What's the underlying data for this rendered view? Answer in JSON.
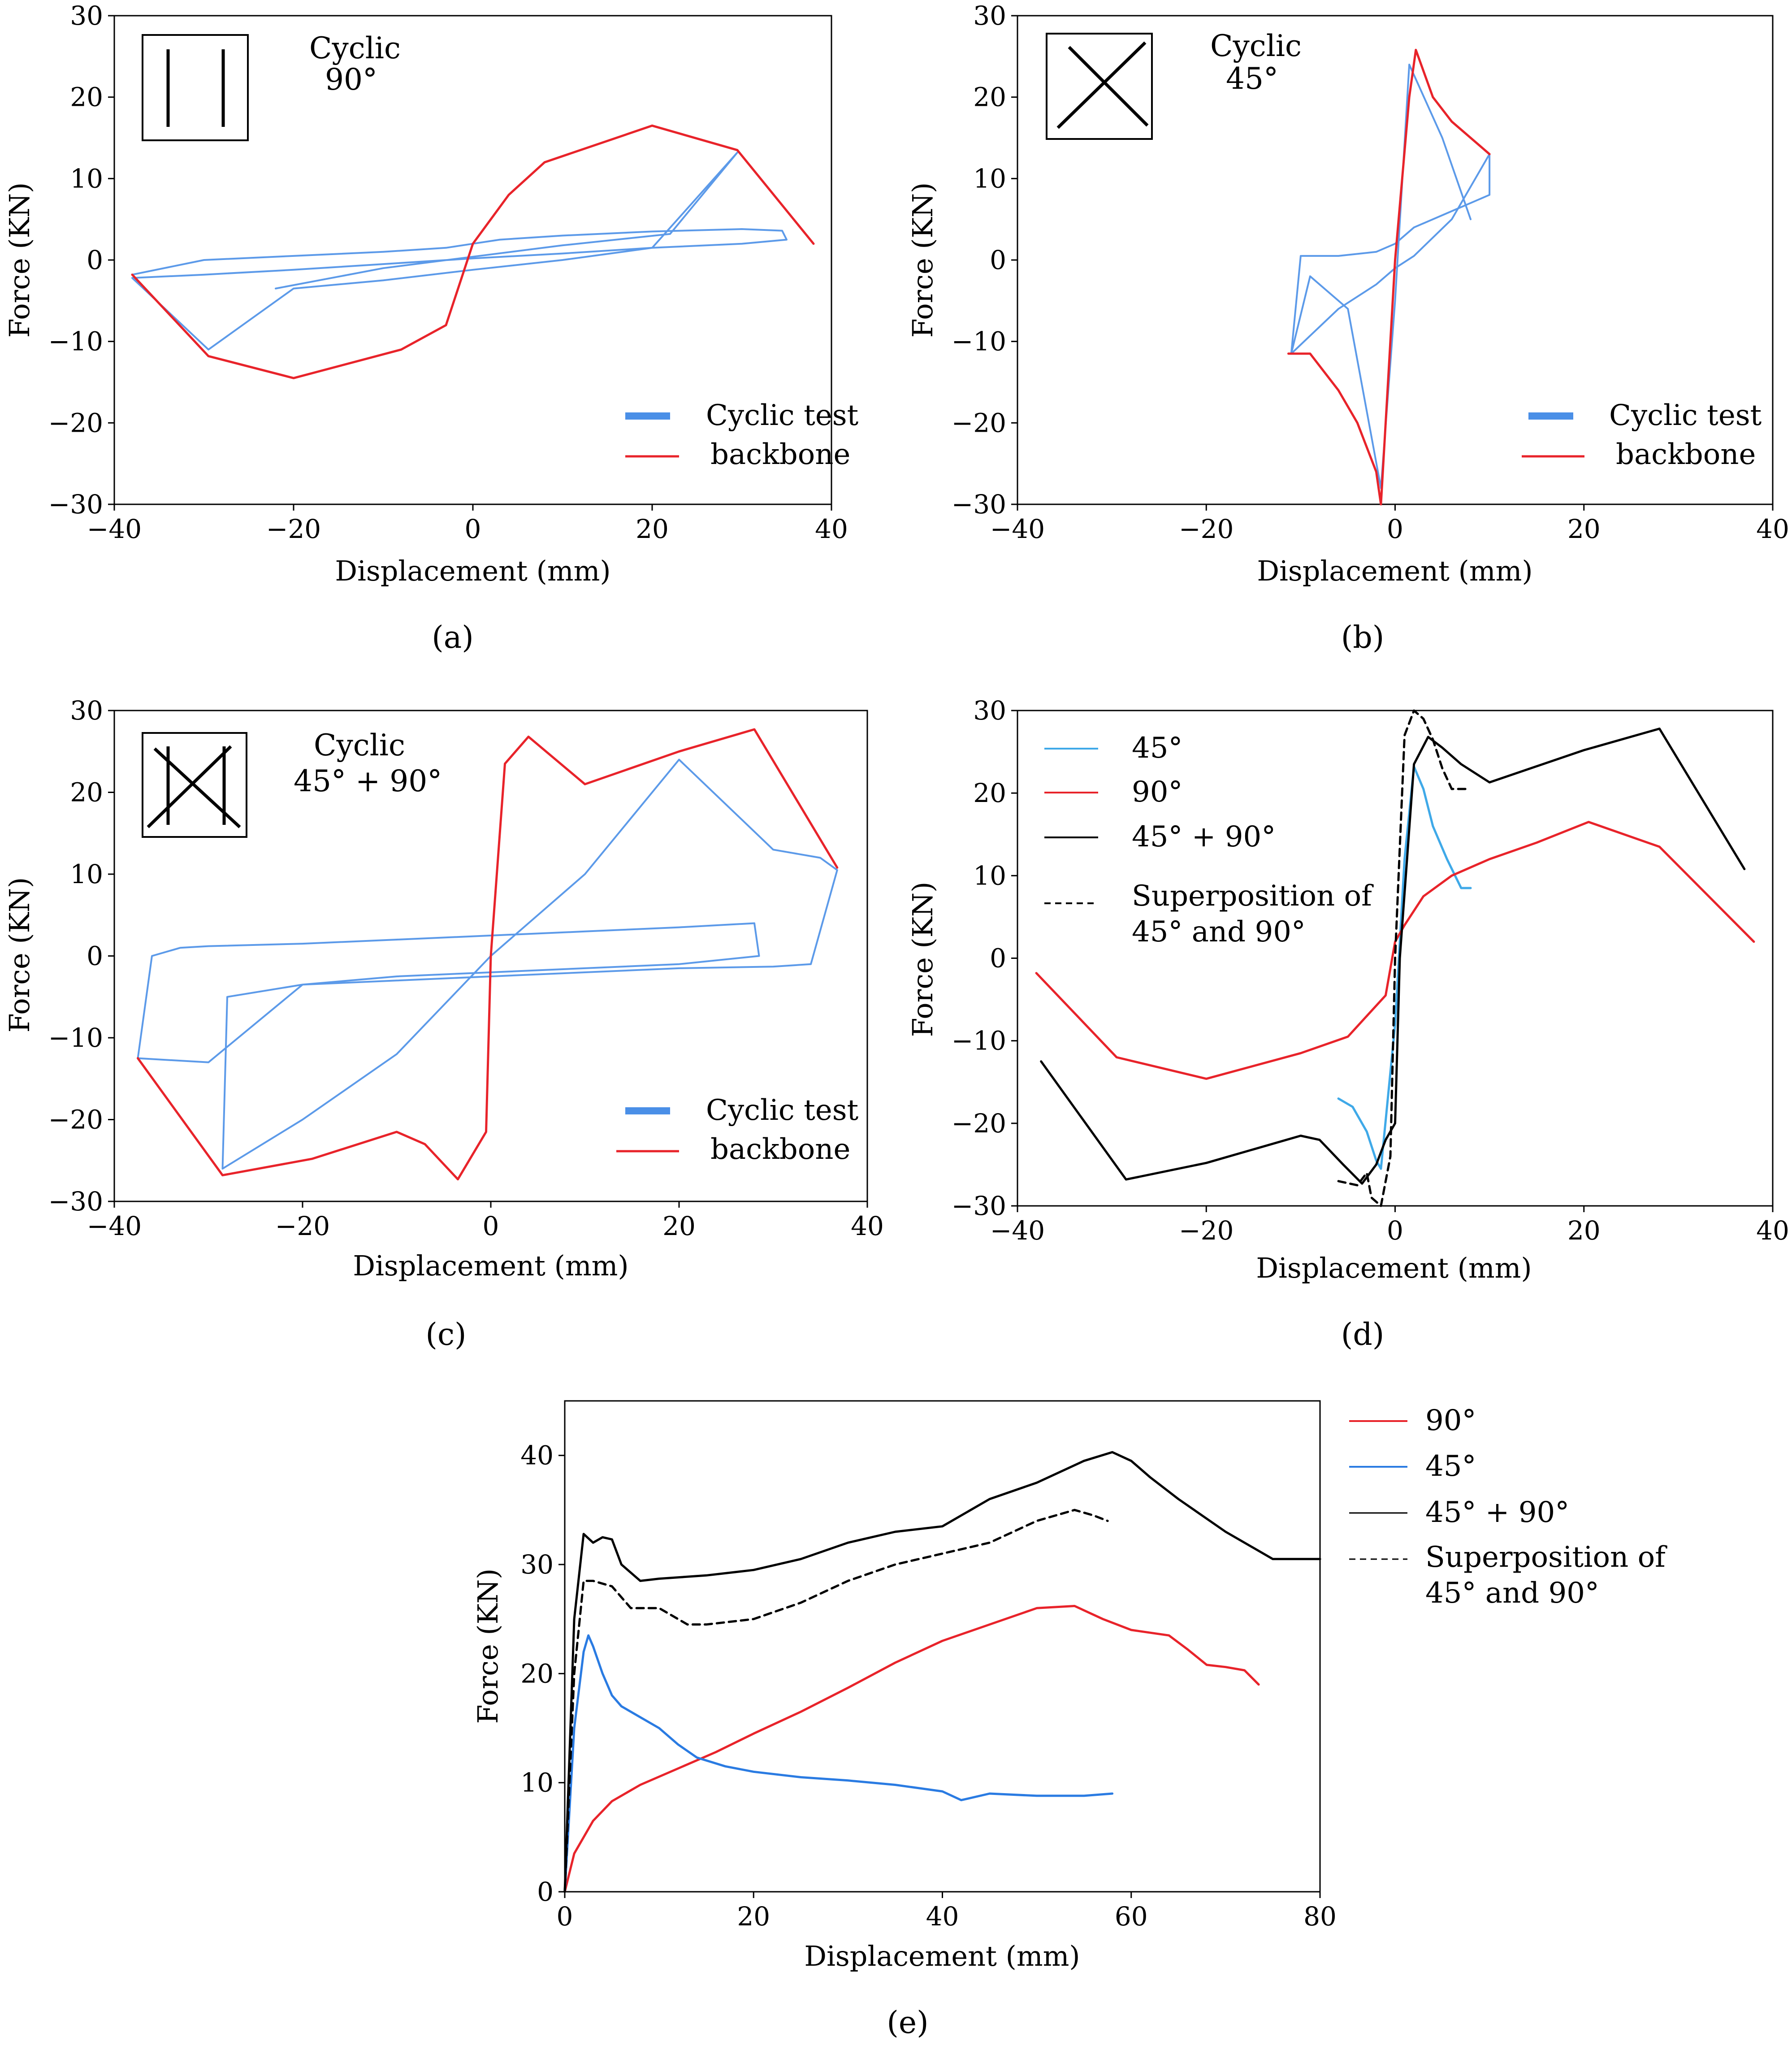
{
  "chart_data": [
    {
      "id": "a",
      "type": "line",
      "caption": "(a)",
      "annotation": [
        "Cyclic",
        "90°"
      ],
      "xlabel": "Displacement (mm)",
      "ylabel": "Force (KN)",
      "xlim": [
        -40,
        40
      ],
      "ylim": [
        -30,
        30
      ],
      "xticks": [
        -40,
        -20,
        0,
        20,
        40
      ],
      "yticks": [
        -30,
        -20,
        -10,
        0,
        10,
        20,
        30
      ],
      "xtick_labels": [
        "−40",
        "−20",
        "0",
        "20",
        "40"
      ],
      "ytick_labels": [
        "−30",
        "−20",
        "−10",
        "0",
        "10",
        "20",
        "30"
      ],
      "legend": [
        "Cyclic test",
        "backbone"
      ],
      "legend_position": "lower-right",
      "series": [
        {
          "name": "Cyclic test",
          "color": "#4a8fe7",
          "x": [
            -38,
            -30,
            -20,
            -10,
            -3,
            0,
            3,
            10,
            20,
            30,
            34.5,
            35,
            30,
            20,
            10,
            0,
            -10,
            -20,
            -30,
            -38,
            -29.5,
            -20,
            -10,
            0,
            10,
            20,
            29.5,
            22,
            10,
            0,
            -10,
            -22
          ],
          "y": [
            -1.8,
            0,
            0.5,
            1,
            1.5,
            2,
            2.5,
            3,
            3.5,
            3.8,
            3.6,
            2.5,
            2,
            1.5,
            0.8,
            0.2,
            -0.5,
            -1.2,
            -1.8,
            -2.2,
            -11,
            -3.5,
            -2.5,
            -1.2,
            0,
            1.5,
            13.2,
            3.2,
            1.8,
            0.4,
            -1,
            -3.5
          ]
        },
        {
          "name": "backbone",
          "color": "#e8232a",
          "x": [
            -38,
            -29.5,
            -20,
            -8,
            -3,
            0,
            4,
            8,
            20,
            29.5,
            38
          ],
          "y": [
            -1.8,
            -11.8,
            -14.5,
            -11,
            -8,
            2,
            8,
            12,
            16.5,
            13.5,
            2
          ]
        }
      ]
    },
    {
      "id": "b",
      "type": "line",
      "caption": "(b)",
      "annotation": [
        "Cyclic",
        "45°"
      ],
      "xlabel": "Displacement (mm)",
      "ylabel": "Force (KN)",
      "xlim": [
        -40,
        40
      ],
      "ylim": [
        -30,
        30
      ],
      "xticks": [
        -40,
        -20,
        0,
        20,
        40
      ],
      "yticks": [
        -30,
        -20,
        -10,
        0,
        10,
        20,
        30
      ],
      "xtick_labels": [
        "−40",
        "−20",
        "0",
        "20",
        "40"
      ],
      "ytick_labels": [
        "−30",
        "−20",
        "−10",
        "0",
        "10",
        "20",
        "30"
      ],
      "legend": [
        "Cyclic test",
        "backbone"
      ],
      "legend_position": "lower-right",
      "series": [
        {
          "name": "Cyclic test",
          "color": "#4a8fe7",
          "x": [
            -11,
            -10,
            -6,
            -2,
            0,
            2,
            6,
            10,
            10,
            6,
            2,
            0,
            -2,
            -6,
            -11,
            -9,
            -5,
            -1.5,
            0,
            1.5,
            5,
            8
          ],
          "y": [
            -11.5,
            0.5,
            0.5,
            1,
            2,
            4,
            6,
            8,
            13,
            5,
            0.5,
            -1,
            -3,
            -6,
            -11.5,
            -2,
            -6,
            -28,
            -5,
            24,
            15,
            5
          ]
        },
        {
          "name": "backbone",
          "color": "#e8232a",
          "x": [
            -11.3,
            -9,
            -6,
            -4,
            -2,
            -1.5,
            0,
            1.5,
            2.2,
            4,
            6,
            10
          ],
          "y": [
            -11.5,
            -11.5,
            -16,
            -20,
            -26,
            -30,
            0,
            20,
            25.8,
            20,
            17,
            13
          ]
        }
      ]
    },
    {
      "id": "c",
      "type": "line",
      "caption": "(c)",
      "annotation": [
        "Cyclic",
        "45° + 90°"
      ],
      "xlabel": "Displacement (mm)",
      "ylabel": "Force (KN)",
      "xlim": [
        -40,
        40
      ],
      "ylim": [
        -30,
        30
      ],
      "xticks": [
        -40,
        -20,
        0,
        20,
        40
      ],
      "yticks": [
        -30,
        -20,
        -10,
        0,
        10,
        20,
        30
      ],
      "xtick_labels": [
        "−40",
        "−20",
        "0",
        "20",
        "40"
      ],
      "ytick_labels": [
        "−30",
        "−20",
        "−10",
        "0",
        "10",
        "20",
        "30"
      ],
      "legend": [
        "Cyclic test",
        "backbone"
      ],
      "legend_position": "lower-right",
      "series": [
        {
          "name": "Cyclic test",
          "color": "#4a8fe7",
          "x": [
            -37.5,
            -36,
            -33,
            -30,
            -20,
            -10,
            0,
            10,
            20,
            28,
            28.5,
            20,
            10,
            0,
            -10,
            -20,
            -28,
            -28.5,
            -20,
            -10,
            0,
            10,
            20,
            30,
            35,
            36.8,
            34,
            30,
            20,
            10,
            0,
            -10,
            -20,
            -30,
            -37.5
          ],
          "y": [
            -12.5,
            0,
            1,
            1.2,
            1.5,
            2,
            2.5,
            3,
            3.5,
            4,
            0,
            -1,
            -1.5,
            -2,
            -2.5,
            -3.5,
            -5,
            -26,
            -20,
            -12,
            0,
            10,
            24,
            13,
            12,
            10.5,
            -1,
            -1.3,
            -1.5,
            -2,
            -2.5,
            -3,
            -3.5,
            -13,
            -12.5
          ]
        },
        {
          "name": "backbone",
          "color": "#e8232a",
          "x": [
            -37.5,
            -28.5,
            -19,
            -10,
            -7,
            -3.5,
            -0.5,
            0,
            1.5,
            4,
            10,
            20,
            28,
            36.8
          ],
          "y": [
            -12.5,
            -26.8,
            -24.8,
            -21.5,
            -23,
            -27.3,
            -21.5,
            0,
            23.5,
            26.8,
            21,
            25,
            27.7,
            10.8
          ]
        }
      ]
    },
    {
      "id": "d",
      "type": "line",
      "caption": "(d)",
      "xlabel": "Displacement (mm)",
      "ylabel": "Force (KN)",
      "xlim": [
        -40,
        40
      ],
      "ylim": [
        -30,
        30
      ],
      "xticks": [
        -40,
        -20,
        0,
        20,
        40
      ],
      "yticks": [
        -30,
        -20,
        -10,
        0,
        10,
        20,
        30
      ],
      "xtick_labels": [
        "−40",
        "−20",
        "0",
        "20",
        "40"
      ],
      "ytick_labels": [
        "−30",
        "−20",
        "−10",
        "0",
        "10",
        "20",
        "30"
      ],
      "legend": [
        "45°",
        "90°",
        "45° + 90°",
        "Superposition of",
        "45° and 90°"
      ],
      "legend_position": "top-left",
      "series": [
        {
          "name": "45°",
          "color": "#3fa9e8",
          "style": "solid",
          "x": [
            -6,
            -4.5,
            -3,
            -2,
            -1.5,
            0,
            1,
            2,
            3,
            4,
            5.5,
            7,
            8
          ],
          "y": [
            -17,
            -18,
            -21,
            -24.5,
            -25.5,
            -8,
            12,
            23.2,
            20.5,
            16,
            12,
            8.5,
            8.5
          ]
        },
        {
          "name": "90°",
          "color": "#e8232a",
          "style": "solid",
          "x": [
            -38,
            -29.5,
            -20,
            -10,
            -5,
            -3,
            -1,
            0,
            1,
            3,
            6,
            10,
            15,
            20.5,
            28,
            38
          ],
          "y": [
            -1.8,
            -12,
            -14.6,
            -11.5,
            -9.5,
            -7,
            -4.5,
            2,
            4,
            7.5,
            10,
            12,
            14,
            16.5,
            13.5,
            2
          ]
        },
        {
          "name": "45° + 90°",
          "color": "#000000",
          "style": "solid",
          "x": [
            -37.5,
            -28.5,
            -20,
            -10,
            -8,
            -5.5,
            -3.5,
            -2,
            -1,
            0,
            0.5,
            2,
            3.5,
            5,
            7,
            10,
            20,
            28,
            37
          ],
          "y": [
            -12.5,
            -26.8,
            -24.8,
            -21.5,
            -22,
            -25,
            -27.3,
            -25,
            -22,
            -20,
            0,
            23.5,
            26.8,
            25.5,
            23.5,
            21.3,
            25.2,
            27.8,
            10.8
          ]
        },
        {
          "name": "Superposition of 45° and 90°",
          "color": "#000000",
          "style": "dashed",
          "x": [
            -6,
            -4,
            -3,
            -2.5,
            -1.5,
            -0.5,
            0,
            1,
            2,
            3,
            4,
            5,
            6,
            7.5
          ],
          "y": [
            -27,
            -27.5,
            -26,
            -29,
            -30,
            -24,
            0,
            27,
            30,
            29,
            26.5,
            23,
            20.5,
            20.5
          ]
        }
      ]
    },
    {
      "id": "e",
      "type": "line",
      "caption": "(e)",
      "xlabel": "Displacement (mm)",
      "ylabel": "Force (KN)",
      "xlim": [
        0,
        80
      ],
      "ylim": [
        0,
        45
      ],
      "xticks": [
        0,
        20,
        40,
        60,
        80
      ],
      "yticks": [
        0,
        10,
        20,
        30,
        40
      ],
      "xtick_labels": [
        "0",
        "20",
        "40",
        "60",
        "80"
      ],
      "ytick_labels": [
        "0",
        "10",
        "20",
        "30",
        "40"
      ],
      "legend": [
        "90°",
        "45°",
        "45° + 90°",
        "Superposition of",
        "45° and 90°"
      ],
      "legend_position": "right-outside",
      "series": [
        {
          "name": "90°",
          "color": "#e8232a",
          "style": "solid",
          "x": [
            0,
            1,
            3,
            5,
            8,
            12,
            16,
            20,
            25,
            30,
            35,
            40,
            45,
            50,
            54,
            57,
            60,
            64,
            66,
            68,
            70,
            72,
            73.5
          ],
          "y": [
            0,
            3.5,
            6.5,
            8.3,
            9.8,
            11.3,
            12.8,
            14.5,
            16.5,
            18.7,
            21,
            23,
            24.5,
            26,
            26.2,
            25,
            24,
            23.5,
            22.2,
            20.8,
            20.6,
            20.3,
            19
          ]
        },
        {
          "name": "45°",
          "color": "#2a7be2",
          "style": "solid",
          "x": [
            0,
            1,
            2,
            2.5,
            3,
            4,
            5,
            6,
            8,
            10,
            12,
            14,
            17,
            20,
            25,
            30,
            35,
            40,
            42,
            45,
            50,
            55,
            58
          ],
          "y": [
            0,
            15,
            22,
            23.5,
            22.5,
            20,
            18,
            17,
            16,
            15,
            13.5,
            12.3,
            11.5,
            11,
            10.5,
            10.2,
            9.8,
            9.2,
            8.4,
            9,
            8.8,
            8.8,
            9
          ]
        },
        {
          "name": "45° + 90°",
          "color": "#000000",
          "style": "solid",
          "x": [
            0,
            1,
            2,
            3,
            4,
            5,
            6,
            8,
            10,
            15,
            20,
            25,
            30,
            35,
            40,
            45,
            50,
            55,
            58,
            60,
            62,
            65,
            70,
            75,
            80
          ],
          "y": [
            0,
            25,
            32.8,
            32,
            32.5,
            32.3,
            30,
            28.5,
            28.7,
            29,
            29.5,
            30.5,
            32,
            33,
            33.5,
            36,
            37.5,
            39.5,
            40.3,
            39.5,
            38,
            36,
            33,
            30.5,
            30.5
          ]
        },
        {
          "name": "Superposition of 45° and 90°",
          "color": "#000000",
          "style": "dashed",
          "x": [
            0,
            1,
            2,
            3,
            5,
            7,
            10,
            12,
            13,
            15,
            20,
            25,
            30,
            35,
            40,
            45,
            50,
            52,
            54,
            56,
            57.5
          ],
          "y": [
            0,
            20,
            28.5,
            28.5,
            28,
            26,
            26,
            25,
            24.5,
            24.5,
            25,
            26.5,
            28.5,
            30,
            31,
            32,
            34,
            34.5,
            35,
            34.5,
            34
          ]
        }
      ]
    }
  ]
}
